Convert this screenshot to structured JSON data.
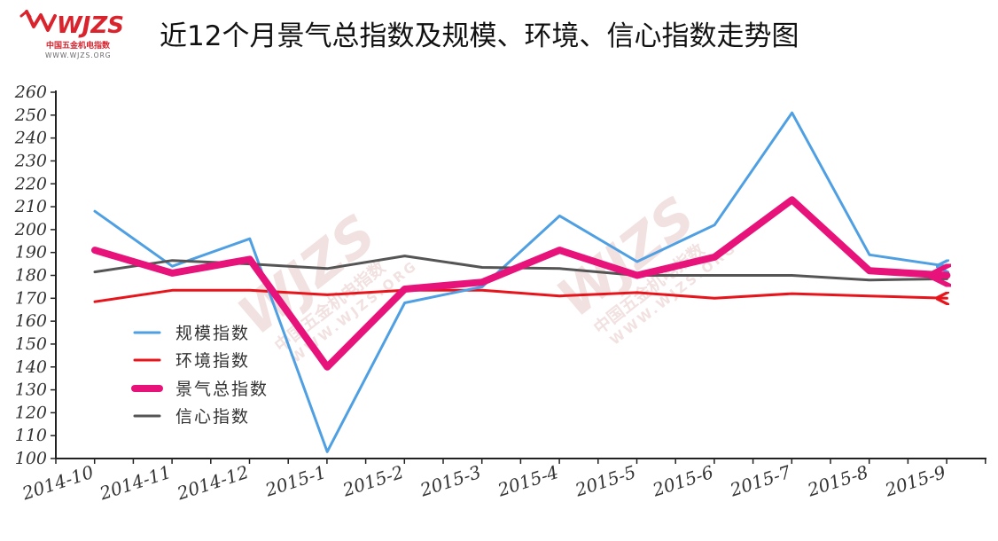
{
  "logo": {
    "brand": "WJZS",
    "subtitle_cn": "中国五金机电指数",
    "url": "WWW.WJZS.ORG",
    "color": "#d9232d"
  },
  "watermark": {
    "brand": "WJZS",
    "subtitle_cn": "中国五金机电指数",
    "url": "WWW.WJZS.ORG"
  },
  "chart_data": {
    "type": "line",
    "title": "近12个月景气总指数及规模、环境、信心指数走势图",
    "xlabel": "",
    "ylabel": "",
    "categories": [
      "2014-10",
      "2014-11",
      "2014-12",
      "2015-1",
      "2015-2",
      "2015-3",
      "2015-4",
      "2015-5",
      "2015-6",
      "2015-7",
      "2015-8",
      "2015-9"
    ],
    "ylim": [
      100,
      260
    ],
    "yticks": [
      100,
      110,
      120,
      130,
      140,
      150,
      160,
      170,
      180,
      190,
      200,
      210,
      220,
      230,
      240,
      250,
      260
    ],
    "grid": false,
    "legend_position": "left-center",
    "series": [
      {
        "name": "规模指数",
        "color": "#4f9fe3",
        "width": 3,
        "arrow": true,
        "values": [
          208,
          184,
          196,
          103,
          168,
          175,
          206,
          186,
          202,
          251,
          189,
          184
        ]
      },
      {
        "name": "环境指数",
        "color": "#e8141c",
        "width": 3,
        "arrow": true,
        "values": [
          168.5,
          173.5,
          173.5,
          171.5,
          173.5,
          173.5,
          171,
          172.5,
          170,
          172,
          171,
          170
        ]
      },
      {
        "name": "景气总指数",
        "color": "#e8137a",
        "width": 8,
        "arrow": true,
        "values": [
          191,
          181,
          187,
          140,
          174,
          177,
          191,
          180,
          188,
          213,
          182,
          180
        ]
      },
      {
        "name": "信心指数",
        "color": "#555555",
        "width": 3,
        "arrow": true,
        "values": [
          181.5,
          186.5,
          185,
          183,
          188.5,
          183.5,
          183,
          180,
          180,
          180,
          178,
          178.5
        ]
      }
    ]
  }
}
